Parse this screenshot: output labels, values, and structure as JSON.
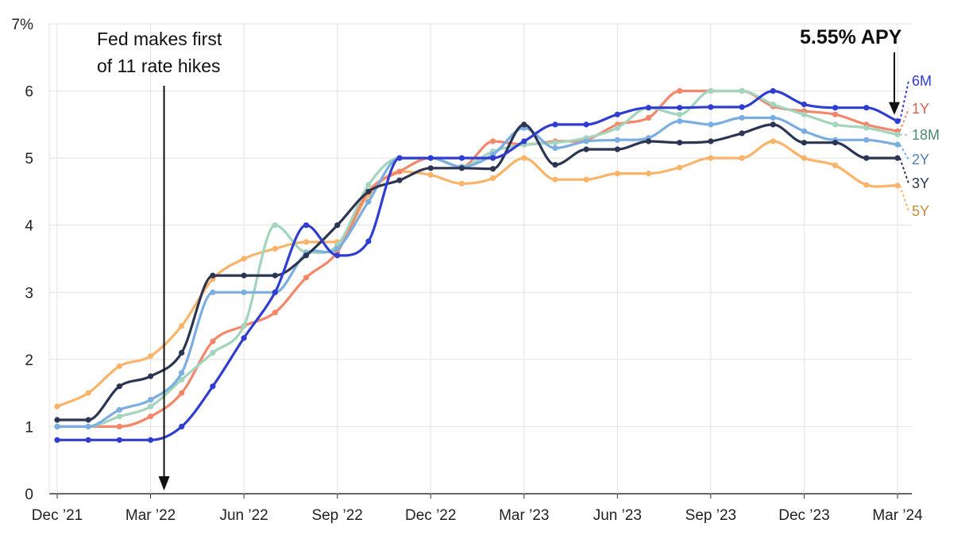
{
  "chart_data": {
    "type": "line",
    "x": [
      "2021-12",
      "2022-01",
      "2022-02",
      "2022-03",
      "2022-04",
      "2022-05",
      "2022-06",
      "2022-07",
      "2022-08",
      "2022-09",
      "2022-10",
      "2022-11",
      "2022-12",
      "2023-01",
      "2023-02",
      "2023-03",
      "2023-04",
      "2023-05",
      "2023-06",
      "2023-07",
      "2023-08",
      "2023-09",
      "2023-10",
      "2023-11",
      "2023-12",
      "2024-01",
      "2024-02",
      "2024-03"
    ],
    "x_ticks": [
      {
        "x": "2021-12",
        "label": "Dec ’21"
      },
      {
        "x": "2022-03",
        "label": "Mar ’22"
      },
      {
        "x": "2022-06",
        "label": "Jun ’22"
      },
      {
        "x": "2022-09",
        "label": "Sep ’22"
      },
      {
        "x": "2022-12",
        "label": "Dec ’22"
      },
      {
        "x": "2023-03",
        "label": "Mar ’23"
      },
      {
        "x": "2023-06",
        "label": "Jun ’23"
      },
      {
        "x": "2023-09",
        "label": "Sep ’23"
      },
      {
        "x": "2023-12",
        "label": "Dec ’23"
      },
      {
        "x": "2024-03",
        "label": "Mar ’24"
      }
    ],
    "y_ticks": [
      {
        "value": 0,
        "label": "0"
      },
      {
        "value": 1,
        "label": "1"
      },
      {
        "value": 2,
        "label": "2"
      },
      {
        "value": 3,
        "label": "3"
      },
      {
        "value": 4,
        "label": "4"
      },
      {
        "value": 5,
        "label": "5"
      },
      {
        "value": 6,
        "label": "6"
      },
      {
        "value": 7,
        "label": "7%"
      }
    ],
    "ylim": [
      0,
      7
    ],
    "grid": true,
    "series": [
      {
        "name": "5Y",
        "color": "#f9b46a",
        "label_color": "#c98a3a",
        "values": [
          1.3,
          1.5,
          1.9,
          2.05,
          2.5,
          3.2,
          3.5,
          3.65,
          3.75,
          3.75,
          4.45,
          4.8,
          4.75,
          4.62,
          4.7,
          5.0,
          4.68,
          4.68,
          4.77,
          4.77,
          4.86,
          5.0,
          5.0,
          5.25,
          5.0,
          4.89,
          4.6,
          4.59
        ]
      },
      {
        "name": "1Y",
        "color": "#f4876a",
        "label_color": "#d06550",
        "values": [
          1.0,
          1.0,
          1.0,
          1.15,
          1.5,
          2.27,
          2.5,
          2.7,
          3.22,
          3.6,
          4.5,
          4.8,
          5.0,
          4.87,
          5.25,
          5.2,
          5.25,
          5.27,
          5.5,
          5.6,
          6.0,
          6.0,
          6.0,
          5.77,
          5.7,
          5.65,
          5.5,
          5.4
        ]
      },
      {
        "name": "18M",
        "color": "#a3d4bc",
        "label_color": "#4e8a6c",
        "values": [
          1.0,
          1.0,
          1.15,
          1.3,
          1.7,
          2.1,
          2.5,
          4.0,
          3.6,
          3.7,
          4.6,
          5.0,
          5.0,
          4.87,
          5.1,
          5.2,
          5.23,
          5.3,
          5.45,
          5.75,
          5.65,
          6.0,
          6.0,
          5.8,
          5.65,
          5.5,
          5.45,
          5.35
        ]
      },
      {
        "name": "2Y",
        "color": "#7aaee3",
        "label_color": "#4b7fb8",
        "values": [
          1.0,
          1.0,
          1.25,
          1.4,
          1.8,
          3.0,
          3.0,
          3.0,
          3.58,
          3.65,
          4.35,
          5.0,
          5.0,
          4.87,
          5.05,
          5.45,
          5.15,
          5.25,
          5.27,
          5.3,
          5.55,
          5.5,
          5.6,
          5.6,
          5.4,
          5.27,
          5.27,
          5.2
        ]
      },
      {
        "name": "3Y",
        "color": "#2c3552",
        "label_color": "#2c3552",
        "values": [
          1.1,
          1.1,
          1.6,
          1.75,
          2.1,
          3.25,
          3.25,
          3.25,
          3.55,
          4.0,
          4.5,
          4.67,
          4.85,
          4.85,
          4.84,
          5.5,
          4.9,
          5.13,
          5.13,
          5.25,
          5.23,
          5.25,
          5.37,
          5.5,
          5.23,
          5.23,
          5.0,
          5.0
        ]
      },
      {
        "name": "6M",
        "color": "#2f3ed0",
        "label_color": "#2f3ed0",
        "values": [
          0.8,
          0.8,
          0.8,
          0.8,
          1.0,
          1.6,
          2.32,
          3.0,
          4.0,
          3.55,
          3.76,
          5.0,
          5.0,
          5.0,
          5.0,
          5.25,
          5.5,
          5.5,
          5.65,
          5.75,
          5.75,
          5.76,
          5.76,
          6.0,
          5.8,
          5.75,
          5.75,
          5.55
        ]
      }
    ],
    "annotations": {
      "fed_line1": "Fed makes first",
      "fed_line2": "of 11 rate hikes",
      "fed_x": "2022-03",
      "apy_text": "5.55% APY",
      "apy_x": "2024-03"
    }
  }
}
